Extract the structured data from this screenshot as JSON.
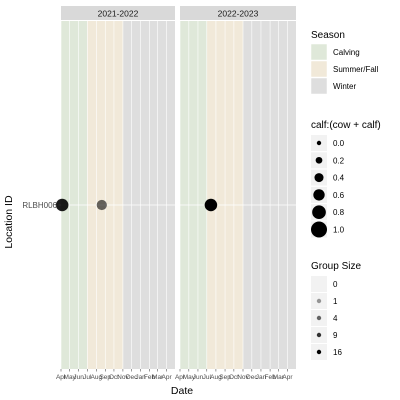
{
  "chart_data": {
    "type": "scatter",
    "xlabel": "Date",
    "ylabel": "Location ID",
    "y_categories": [
      "RLBH006"
    ],
    "x_month_ticks": [
      "Apr",
      "May",
      "Jun",
      "Jul",
      "Aug",
      "Sep",
      "Oct",
      "Nov",
      "Dec",
      "Jan",
      "Feb",
      "Mar",
      "Apr"
    ],
    "facets": [
      {
        "label": "2021-2022",
        "xlim": [
          "2021-04-01",
          "2022-04-30"
        ],
        "points": [
          {
            "date": "2021-04-05",
            "location": "RLBH006",
            "calf_ratio": 0.7,
            "group_size": 12
          },
          {
            "date": "2021-08-20",
            "location": "RLBH006",
            "calf_ratio": 0.5,
            "group_size": 4
          }
        ]
      },
      {
        "label": "2022-2023",
        "xlim": [
          "2022-04-01",
          "2023-04-30"
        ],
        "points": [
          {
            "date": "2022-07-15",
            "location": "RLBH006",
            "calf_ratio": 0.7,
            "group_size": 16
          }
        ]
      }
    ],
    "season_bands": [
      {
        "season": "Calving",
        "from_month": "Apr",
        "to_month": "Jun"
      },
      {
        "season": "Summer/Fall",
        "from_month": "Jul",
        "to_month": "Oct"
      },
      {
        "season": "Winter",
        "from_month": "Nov",
        "to_month": "Apr"
      }
    ],
    "legends": {
      "season": {
        "title": "Season",
        "entries": [
          {
            "label": "Calving",
            "color": "#dfe8d9"
          },
          {
            "label": "Summer/Fall",
            "color": "#f1e9d9"
          },
          {
            "label": "Winter",
            "color": "#dedede"
          }
        ]
      },
      "size": {
        "title": "calf:(cow + calf)",
        "entries": [
          "0.0",
          "0.2",
          "0.4",
          "0.6",
          "0.8",
          "1.0"
        ]
      },
      "alpha": {
        "title": "Group Size",
        "entries": [
          "0",
          "1",
          "4",
          "9",
          "16"
        ]
      }
    },
    "legend_position": "right",
    "grid": true,
    "colors": {
      "panel_bg": "#ebebeb",
      "strip_bg": "#d9d9d9",
      "calving": "#dfe8d9",
      "summer_fall": "#f1e9d9",
      "winter": "#dedede",
      "point": "#000000"
    }
  }
}
